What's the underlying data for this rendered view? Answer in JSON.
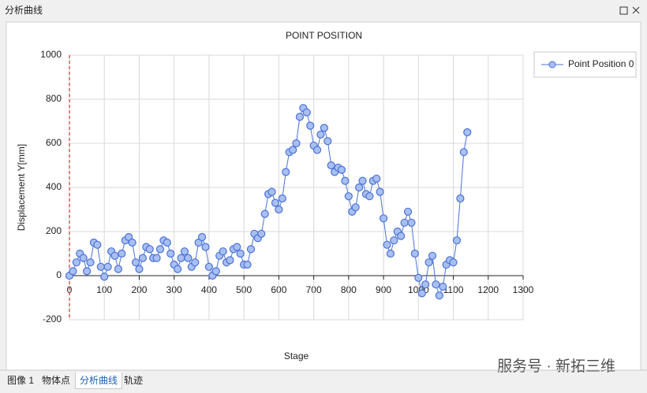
{
  "window": {
    "title": "分析曲线"
  },
  "tabs": [
    "图像 1",
    "物体点",
    "分析曲线",
    "轨迹"
  ],
  "watermark": "服务号 · 新拓三维",
  "chart_data": {
    "type": "line",
    "title": "POINT POSITION",
    "x_label": "Stage",
    "y_label": "Displacement Y[mm]",
    "x": [
      0,
      10,
      20,
      30,
      40,
      50,
      60,
      70,
      80,
      90,
      100,
      110,
      120,
      130,
      140,
      150,
      160,
      170,
      180,
      190,
      200,
      210,
      220,
      230,
      240,
      250,
      260,
      270,
      280,
      290,
      300,
      310,
      320,
      330,
      340,
      350,
      360,
      370,
      380,
      390,
      400,
      410,
      420,
      430,
      440,
      450,
      460,
      470,
      480,
      490,
      500,
      510,
      520,
      530,
      540,
      550,
      560,
      570,
      580,
      590,
      600,
      610,
      620,
      630,
      640,
      650,
      660,
      670,
      680,
      690,
      700,
      710,
      720,
      730,
      740,
      750,
      760,
      770,
      780,
      790,
      800,
      810,
      820,
      830,
      840,
      850,
      860,
      870,
      880,
      890,
      900,
      910,
      920,
      930,
      940,
      950,
      960,
      970,
      980,
      990,
      1000,
      1010,
      1020,
      1030,
      1040,
      1050,
      1060,
      1070,
      1080,
      1090,
      1100,
      1110,
      1120,
      1130,
      1140
    ],
    "series": [
      {
        "name": "Point Position 0",
        "color": "#4a72d8",
        "values": [
          0,
          20,
          60,
          100,
          80,
          20,
          60,
          150,
          140,
          40,
          -5,
          40,
          110,
          90,
          30,
          100,
          160,
          175,
          150,
          60,
          30,
          80,
          130,
          120,
          80,
          80,
          120,
          160,
          150,
          100,
          50,
          30,
          80,
          110,
          80,
          40,
          60,
          150,
          175,
          130,
          40,
          0,
          20,
          90,
          110,
          60,
          70,
          120,
          130,
          100,
          50,
          50,
          120,
          190,
          170,
          190,
          280,
          370,
          380,
          330,
          300,
          350,
          470,
          560,
          570,
          600,
          720,
          760,
          740,
          680,
          590,
          570,
          640,
          670,
          610,
          500,
          470,
          490,
          480,
          430,
          360,
          290,
          310,
          400,
          430,
          370,
          360,
          430,
          440,
          380,
          260,
          140,
          100,
          160,
          200,
          180,
          240,
          290,
          240,
          100,
          -10,
          -80,
          -40,
          60,
          90,
          -40,
          -90,
          -50,
          50,
          70,
          60,
          160,
          350,
          560,
          650
        ]
      }
    ],
    "xlim": [
      0,
      1300
    ],
    "xticks": [
      0,
      100,
      200,
      300,
      400,
      500,
      600,
      700,
      800,
      900,
      1000,
      1100,
      1200,
      1300
    ],
    "ylim": [
      -200,
      1000
    ],
    "yticks": [
      -200,
      0,
      200,
      400,
      600,
      800,
      1000
    ],
    "grid": true,
    "legend": "top-right"
  }
}
